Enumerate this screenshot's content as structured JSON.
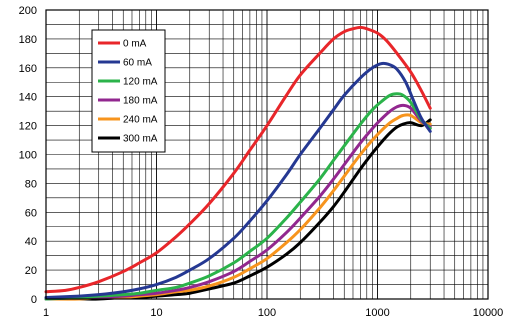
{
  "chart_data": {
    "type": "line",
    "title": "",
    "xlabel": "",
    "ylabel": "",
    "x_scale": "log",
    "xlim": [
      1,
      10000
    ],
    "ylim": [
      0,
      200
    ],
    "x_ticks": [
      "1",
      "10",
      "100",
      "1000",
      "10000"
    ],
    "y_ticks": [
      "0",
      "20",
      "40",
      "60",
      "80",
      "100",
      "120",
      "140",
      "160",
      "180",
      "200"
    ],
    "grid": true,
    "legend_position": "top-left",
    "series": [
      {
        "name": "0 mA",
        "color": "#e8262a",
        "x": [
          1,
          1.5,
          2,
          3,
          5,
          7,
          10,
          15,
          20,
          30,
          50,
          70,
          100,
          150,
          200,
          300,
          400,
          500,
          600,
          700,
          800,
          1000,
          1200,
          1500,
          2000,
          2500,
          3000
        ],
        "y": [
          5,
          6,
          8,
          12,
          19,
          25,
          32,
          43,
          52,
          66,
          87,
          103,
          120,
          141,
          155,
          170,
          180,
          185,
          187,
          188,
          187,
          184,
          179,
          170,
          157,
          144,
          132
        ]
      },
      {
        "name": "60 mA",
        "color": "#253892",
        "x": [
          1,
          2,
          3,
          5,
          7,
          10,
          15,
          20,
          30,
          50,
          70,
          100,
          150,
          200,
          300,
          400,
          500,
          700,
          900,
          1100,
          1300,
          1500,
          1800,
          2100,
          2500,
          3000
        ],
        "y": [
          1,
          2,
          3,
          5,
          7,
          10,
          15,
          20,
          28,
          42,
          54,
          68,
          86,
          100,
          118,
          131,
          141,
          153,
          160,
          163,
          162,
          159,
          150,
          138,
          125,
          116
        ]
      },
      {
        "name": "120 mA",
        "color": "#2bb34a",
        "x": [
          1,
          2,
          3,
          5,
          7,
          10,
          15,
          20,
          30,
          50,
          70,
          100,
          150,
          200,
          300,
          400,
          500,
          700,
          900,
          1100,
          1300,
          1500,
          1700,
          2000,
          2500,
          3000
        ],
        "y": [
          0,
          1,
          2,
          3,
          4,
          6,
          8,
          11,
          16,
          25,
          33,
          42,
          56,
          67,
          83,
          96,
          106,
          121,
          131,
          137,
          141,
          142,
          141,
          136,
          124,
          118
        ]
      },
      {
        "name": "180 mA",
        "color": "#92278f",
        "x": [
          1,
          2,
          3,
          5,
          7,
          10,
          15,
          20,
          30,
          50,
          70,
          100,
          150,
          200,
          300,
          400,
          500,
          700,
          900,
          1100,
          1300,
          1500,
          1700,
          2000,
          2500,
          3000
        ],
        "y": [
          0,
          1,
          1,
          2,
          3,
          4,
          6,
          8,
          12,
          19,
          26,
          34,
          46,
          56,
          71,
          83,
          93,
          108,
          118,
          125,
          130,
          133,
          134,
          132,
          123,
          119
        ]
      },
      {
        "name": "240 mA",
        "color": "#f7941d",
        "x": [
          1,
          2,
          3,
          5,
          7,
          10,
          15,
          20,
          30,
          50,
          70,
          100,
          150,
          200,
          300,
          400,
          500,
          700,
          900,
          1100,
          1300,
          1500,
          1700,
          2000,
          2500,
          3000
        ],
        "y": [
          0,
          0,
          1,
          1,
          2,
          3,
          5,
          6,
          9,
          15,
          21,
          28,
          39,
          48,
          63,
          75,
          85,
          100,
          110,
          117,
          122,
          125,
          127,
          127,
          122,
          121
        ]
      },
      {
        "name": "300 mA",
        "color": "#000000",
        "x": [
          1,
          2,
          3,
          5,
          7,
          10,
          15,
          20,
          30,
          50,
          70,
          100,
          150,
          200,
          300,
          400,
          500,
          700,
          900,
          1100,
          1300,
          1500,
          1700,
          2000,
          2500,
          3000
        ],
        "y": [
          0,
          0,
          0,
          1,
          1,
          2,
          3,
          4,
          7,
          11,
          16,
          22,
          31,
          39,
          53,
          64,
          74,
          90,
          101,
          109,
          115,
          119,
          121,
          122,
          120,
          124
        ]
      }
    ]
  }
}
